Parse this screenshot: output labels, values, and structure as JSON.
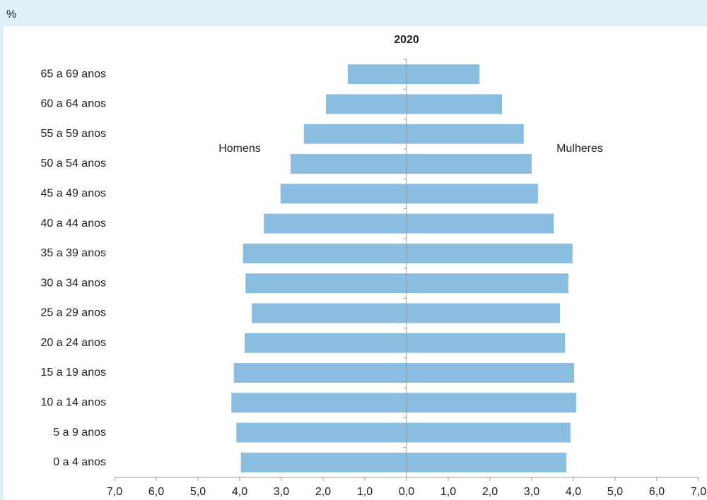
{
  "chart_data": {
    "type": "pyramid",
    "title": "2020",
    "xlabel": "%",
    "categories": [
      "0 a 4 anos",
      "5 a 9 anos",
      "10 a 14 anos",
      "15 a 19 anos",
      "20 a 24 anos",
      "25 a 29 anos",
      "30 a 34 anos",
      "35 a 39 anos",
      "40 a 44 anos",
      "45 a 49 anos",
      "50 a 54 anos",
      "55 a 59 anos",
      "60 a 64 anos",
      "65 a 69 anos"
    ],
    "series": [
      {
        "name": "Homens",
        "color": "#8bbde0",
        "values": [
          -3.97,
          -4.08,
          -4.2,
          -4.14,
          -3.88,
          -3.71,
          -3.86,
          -3.92,
          -3.42,
          -3.02,
          -2.78,
          -2.46,
          -1.93,
          -1.41
        ]
      },
      {
        "name": "Mulheres",
        "color": "#8bbde0",
        "values": [
          3.83,
          3.93,
          4.07,
          4.02,
          3.8,
          3.68,
          3.88,
          3.98,
          3.53,
          3.15,
          3.0,
          2.81,
          2.29,
          1.75
        ]
      }
    ],
    "xlim": [
      -7,
      7
    ],
    "xticks": [
      {
        "value": -7,
        "label": "7,0"
      },
      {
        "value": -6,
        "label": "6,0"
      },
      {
        "value": -5,
        "label": "5,0"
      },
      {
        "value": -4,
        "label": "4,0"
      },
      {
        "value": -3,
        "label": "3,0"
      },
      {
        "value": -2,
        "label": "2,0"
      },
      {
        "value": -1,
        "label": "1,0"
      },
      {
        "value": 0,
        "label": "0,0"
      },
      {
        "value": 1,
        "label": "1,0"
      },
      {
        "value": 2,
        "label": "2,0"
      },
      {
        "value": 3,
        "label": "3,0"
      },
      {
        "value": 4,
        "label": "4,0"
      },
      {
        "value": 5,
        "label": "5,0"
      },
      {
        "value": 6,
        "label": "6,0"
      },
      {
        "value": 7,
        "label": "7,0"
      }
    ]
  }
}
